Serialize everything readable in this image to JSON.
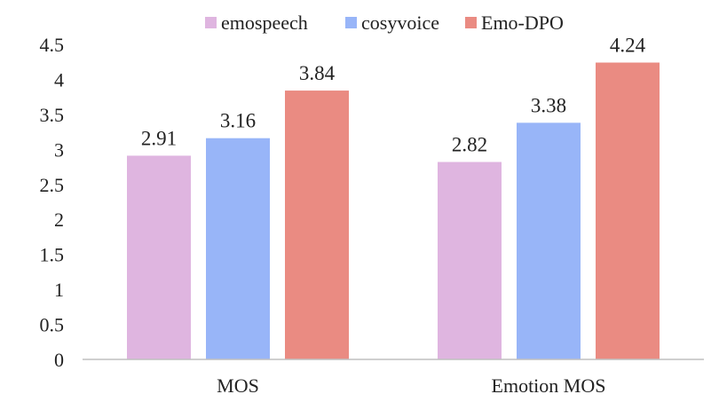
{
  "chart_data": {
    "type": "bar",
    "title": "",
    "xlabel": "",
    "ylabel": "",
    "categories": [
      "MOS",
      "Emotion MOS"
    ],
    "series": [
      {
        "name": "emospeech",
        "values": [
          2.91,
          2.82
        ],
        "color": "#dfb5e0"
      },
      {
        "name": "cosyvoice",
        "values": [
          3.16,
          3.38
        ],
        "color": "#98b5f8"
      },
      {
        "name": "Emo-DPO",
        "values": [
          3.84,
          4.24
        ],
        "color": "#ea8b82"
      }
    ],
    "y_ticks": [
      "0",
      "0.5",
      "1",
      "1.5",
      "2",
      "2.5",
      "3",
      "3.5",
      "4",
      "4.5"
    ],
    "ylim": [
      0,
      4.5
    ],
    "grid": false,
    "legend_position": "top-center"
  }
}
